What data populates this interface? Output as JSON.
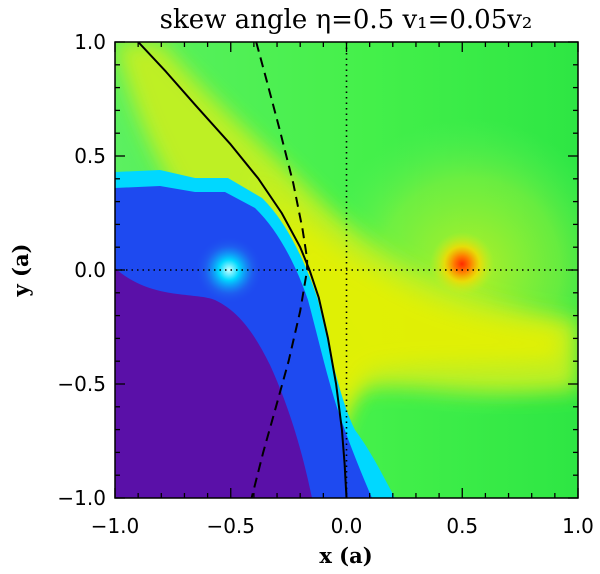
{
  "chart_data": {
    "type": "heatmap",
    "title": "skew angle η=0.5  v₁=0.05v₂",
    "xlabel": "x (a)",
    "ylabel": "y (a)",
    "xlim": [
      -1.0,
      1.0
    ],
    "ylim": [
      -1.0,
      1.0
    ],
    "xticks": [
      -1.0,
      -0.5,
      0.0,
      0.5,
      1.0
    ],
    "yticks": [
      -1.0,
      -0.5,
      0.0,
      0.5,
      1.0
    ],
    "xtick_labels": [
      "−1.0",
      "−0.5",
      "0.0",
      "0.5",
      "1.0"
    ],
    "ytick_labels": [
      "−1.0",
      "−0.5",
      "0.0",
      "0.5",
      "1.0"
    ],
    "sources": [
      {
        "x": -0.5,
        "y": 0.0,
        "color": "cyan"
      },
      {
        "x": 0.5,
        "y": 0.0,
        "color": "red"
      }
    ],
    "curves": [
      {
        "style": "solid",
        "x": [
          -0.9,
          -0.78,
          -0.65,
          -0.5,
          -0.38,
          -0.28,
          -0.2,
          -0.16,
          -0.12,
          -0.08,
          -0.045,
          -0.02,
          -0.008,
          0.0
        ],
        "y": [
          1.0,
          0.87,
          0.72,
          0.55,
          0.4,
          0.25,
          0.1,
          0.0,
          -0.12,
          -0.3,
          -0.5,
          -0.7,
          -0.85,
          -1.0
        ]
      },
      {
        "style": "dashed",
        "x": [
          -0.39,
          -0.35,
          -0.29,
          -0.23,
          -0.19,
          -0.17,
          -0.17,
          -0.2,
          -0.25,
          -0.31,
          -0.36,
          -0.41
        ],
        "y": [
          1.0,
          0.85,
          0.62,
          0.38,
          0.18,
          0.05,
          0.0,
          -0.18,
          -0.4,
          -0.62,
          -0.8,
          -1.0
        ]
      }
    ],
    "reference_lines": [
      {
        "orientation": "vertical",
        "value": 0.0,
        "style": "dotted"
      },
      {
        "orientation": "horizontal",
        "value": 0.0,
        "style": "dotted"
      }
    ],
    "colors": {
      "background_green": "#38f048",
      "lime_band": "#c8f020",
      "yellow_band": "#e8f000",
      "blue_region": "#1e4af0",
      "cyan_edge": "#00d8ff",
      "purple_region": "#5a10a8",
      "source_red": "#ff2a00"
    }
  }
}
